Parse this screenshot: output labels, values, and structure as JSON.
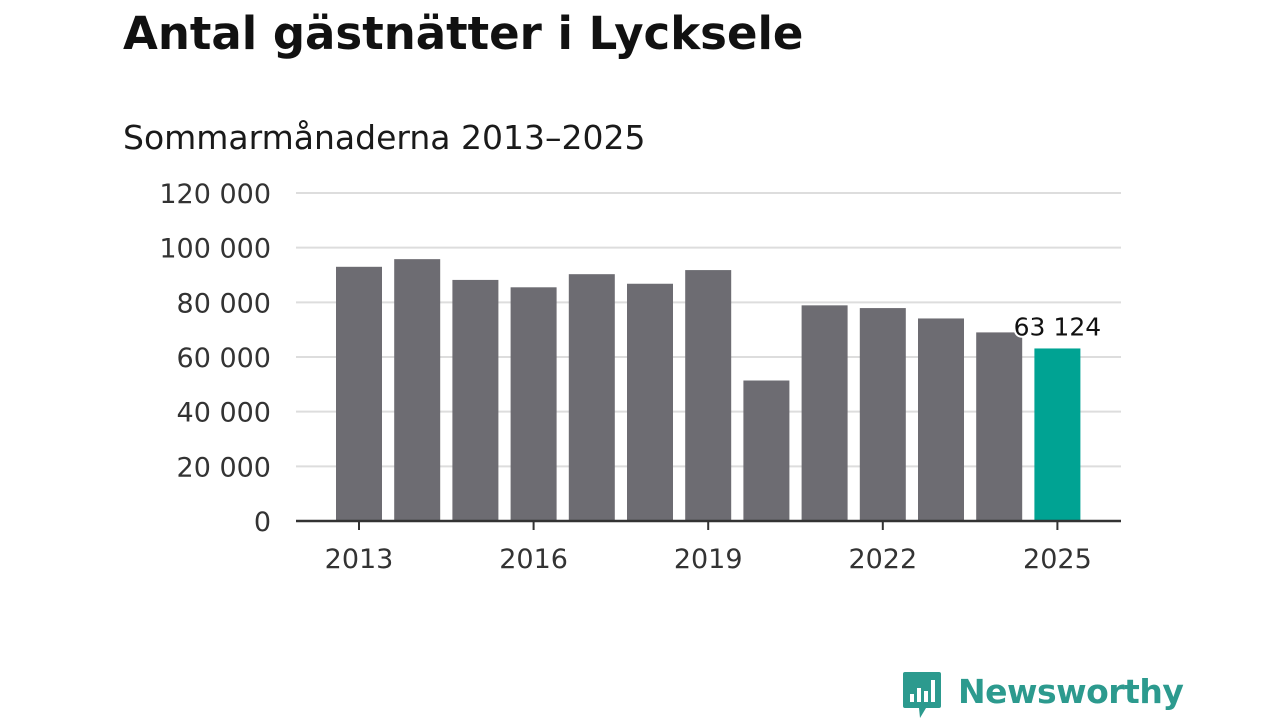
{
  "header": {
    "title": "Antal gästnätter i Lycksele",
    "subtitle": "Sommarmånaderna 2013–2025"
  },
  "brand": {
    "name": "Newsworthy",
    "color": "#2c9a8e",
    "icon": "bar-chart-speech-bubble-icon"
  },
  "chart_data": {
    "type": "bar",
    "categories": [
      "2013",
      "2014",
      "2015",
      "2016",
      "2017",
      "2018",
      "2019",
      "2020",
      "2021",
      "2022",
      "2023",
      "2024",
      "2025"
    ],
    "values": [
      93000,
      95800,
      88200,
      85500,
      90300,
      86800,
      91800,
      51400,
      78900,
      77900,
      74100,
      69000,
      63124
    ],
    "x_tick_labels": [
      "2013",
      "2016",
      "2019",
      "2022",
      "2025"
    ],
    "y_ticks": [
      0,
      20000,
      40000,
      60000,
      80000,
      100000,
      120000
    ],
    "y_tick_labels": [
      "0",
      "20 000",
      "40 000",
      "60 000",
      "80 000",
      "100 000",
      "120 000"
    ],
    "ylim": [
      0,
      120000
    ],
    "grid": true,
    "highlight": {
      "category": "2025",
      "label": "63 124"
    },
    "colors": {
      "bar": "#6d6c72",
      "highlight": "#00a393",
      "grid": "#dddddd",
      "axis": "#333333",
      "text": "#333333"
    }
  }
}
